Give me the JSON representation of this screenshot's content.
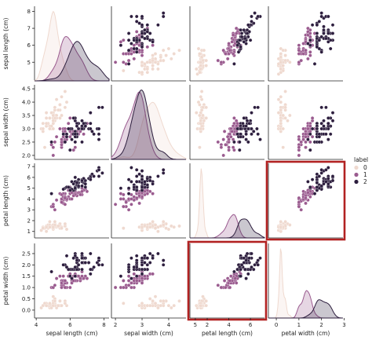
{
  "chart_data": {
    "type": "scatter",
    "variables": [
      "sepal length (cm)",
      "sepal width (cm)",
      "petal length (cm)",
      "petal width (cm)"
    ],
    "ticks": {
      "row": [
        {
          "values": [
            5,
            6,
            7,
            8
          ],
          "labels": [
            "5",
            "6",
            "7",
            "8"
          ]
        },
        {
          "values": [
            2.0,
            2.5,
            3.0,
            3.5,
            4.0,
            4.5
          ],
          "labels": [
            "2.0",
            "2.5",
            "3.0",
            "3.5",
            "4.0",
            "4.5"
          ]
        },
        {
          "values": [
            1,
            2,
            3,
            4,
            5,
            6,
            7
          ],
          "labels": [
            "1",
            "2",
            "3",
            "4",
            "5",
            "6",
            "7"
          ]
        },
        {
          "values": [
            0.0,
            0.5,
            1.0,
            1.5,
            2.0,
            2.5
          ],
          "labels": [
            "0.0",
            "0.5",
            "1.0",
            "1.5",
            "2.0",
            "2.5"
          ]
        }
      ],
      "col": [
        {
          "values": [
            4,
            6,
            8
          ],
          "labels": [
            "4",
            "6",
            "8"
          ]
        },
        {
          "values": [
            2,
            3,
            4,
            5
          ],
          "labels": [
            "2",
            "3",
            "4",
            "5"
          ]
        },
        {
          "values": [
            2,
            4,
            6
          ],
          "labels": [
            "2",
            "4",
            "6"
          ]
        },
        {
          "values": [
            0,
            1,
            2,
            3
          ],
          "labels": [
            "0",
            "1",
            "2",
            "3"
          ]
        }
      ]
    },
    "ranges": [
      [
        3.9,
        8.3
      ],
      [
        1.85,
        4.65
      ],
      [
        0.4,
        7.3
      ],
      [
        -0.35,
        2.95
      ]
    ],
    "legend": {
      "title": "label",
      "placement": "right",
      "labels": [
        "0",
        "1",
        "2"
      ]
    },
    "colors": [
      "#efd9cf",
      "#9a5b8f",
      "#2d1e3e"
    ],
    "kde_fill_opacity": 0.25,
    "highlight_color": "#b22222",
    "highlighted_panels": [
      [
        2,
        3
      ],
      [
        3,
        2
      ]
    ],
    "series": [
      {
        "name": "0",
        "points": [
          [
            5.1,
            3.5,
            1.4,
            0.2
          ],
          [
            4.9,
            3.0,
            1.4,
            0.2
          ],
          [
            4.7,
            3.2,
            1.3,
            0.2
          ],
          [
            4.6,
            3.1,
            1.5,
            0.2
          ],
          [
            5.0,
            3.6,
            1.4,
            0.2
          ],
          [
            5.4,
            3.9,
            1.7,
            0.4
          ],
          [
            4.6,
            3.4,
            1.4,
            0.3
          ],
          [
            5.0,
            3.4,
            1.5,
            0.2
          ],
          [
            4.4,
            2.9,
            1.4,
            0.2
          ],
          [
            4.9,
            3.1,
            1.5,
            0.1
          ],
          [
            5.4,
            3.7,
            1.5,
            0.2
          ],
          [
            4.8,
            3.4,
            1.6,
            0.2
          ],
          [
            4.8,
            3.0,
            1.4,
            0.1
          ],
          [
            4.3,
            3.0,
            1.1,
            0.1
          ],
          [
            5.8,
            4.0,
            1.2,
            0.2
          ],
          [
            5.7,
            4.4,
            1.5,
            0.4
          ],
          [
            5.4,
            3.9,
            1.3,
            0.4
          ],
          [
            5.1,
            3.5,
            1.4,
            0.3
          ],
          [
            5.7,
            3.8,
            1.7,
            0.3
          ],
          [
            5.1,
            3.8,
            1.5,
            0.3
          ],
          [
            5.4,
            3.4,
            1.7,
            0.2
          ],
          [
            5.1,
            3.7,
            1.5,
            0.4
          ],
          [
            4.6,
            3.6,
            1.0,
            0.2
          ],
          [
            5.1,
            3.3,
            1.7,
            0.5
          ],
          [
            4.8,
            3.4,
            1.9,
            0.2
          ],
          [
            5.0,
            3.0,
            1.6,
            0.2
          ],
          [
            5.0,
            3.4,
            1.6,
            0.4
          ],
          [
            5.2,
            3.5,
            1.5,
            0.2
          ],
          [
            5.2,
            3.4,
            1.4,
            0.2
          ],
          [
            4.7,
            3.2,
            1.6,
            0.2
          ],
          [
            4.8,
            3.1,
            1.6,
            0.2
          ],
          [
            5.4,
            3.4,
            1.5,
            0.4
          ],
          [
            5.2,
            4.1,
            1.5,
            0.1
          ],
          [
            5.5,
            4.2,
            1.4,
            0.2
          ],
          [
            4.9,
            3.1,
            1.5,
            0.2
          ],
          [
            5.0,
            3.2,
            1.2,
            0.2
          ],
          [
            5.5,
            3.5,
            1.3,
            0.2
          ],
          [
            4.9,
            3.6,
            1.4,
            0.1
          ],
          [
            4.4,
            3.0,
            1.3,
            0.2
          ],
          [
            5.1,
            3.4,
            1.5,
            0.2
          ],
          [
            5.0,
            3.5,
            1.3,
            0.3
          ],
          [
            4.5,
            2.3,
            1.3,
            0.3
          ],
          [
            4.4,
            3.2,
            1.3,
            0.2
          ],
          [
            5.0,
            3.5,
            1.6,
            0.6
          ],
          [
            5.1,
            3.8,
            1.9,
            0.4
          ],
          [
            4.8,
            3.0,
            1.4,
            0.3
          ],
          [
            5.1,
            3.8,
            1.6,
            0.2
          ],
          [
            4.6,
            3.2,
            1.4,
            0.2
          ],
          [
            5.3,
            3.7,
            1.5,
            0.2
          ],
          [
            5.0,
            3.3,
            1.4,
            0.2
          ]
        ]
      },
      {
        "name": "1",
        "points": [
          [
            7.0,
            3.2,
            4.7,
            1.4
          ],
          [
            6.4,
            3.2,
            4.5,
            1.5
          ],
          [
            6.9,
            3.1,
            4.9,
            1.5
          ],
          [
            5.5,
            2.3,
            4.0,
            1.3
          ],
          [
            6.5,
            2.8,
            4.6,
            1.5
          ],
          [
            5.7,
            2.8,
            4.5,
            1.3
          ],
          [
            6.3,
            3.3,
            4.7,
            1.6
          ],
          [
            4.9,
            2.4,
            3.3,
            1.0
          ],
          [
            6.6,
            2.9,
            4.6,
            1.3
          ],
          [
            5.2,
            2.7,
            3.9,
            1.4
          ],
          [
            5.0,
            2.0,
            3.5,
            1.0
          ],
          [
            5.9,
            3.0,
            4.2,
            1.5
          ],
          [
            6.0,
            2.2,
            4.0,
            1.0
          ],
          [
            6.1,
            2.9,
            4.7,
            1.4
          ],
          [
            5.6,
            2.9,
            3.6,
            1.3
          ],
          [
            6.7,
            3.1,
            4.4,
            1.4
          ],
          [
            5.6,
            3.0,
            4.5,
            1.5
          ],
          [
            5.8,
            2.7,
            4.1,
            1.0
          ],
          [
            6.2,
            2.2,
            4.5,
            1.5
          ],
          [
            5.6,
            2.5,
            3.9,
            1.1
          ],
          [
            5.9,
            3.2,
            4.8,
            1.8
          ],
          [
            6.1,
            2.8,
            4.0,
            1.3
          ],
          [
            6.3,
            2.5,
            4.9,
            1.5
          ],
          [
            6.1,
            2.8,
            4.7,
            1.2
          ],
          [
            6.4,
            2.9,
            4.3,
            1.3
          ],
          [
            6.6,
            3.0,
            4.4,
            1.4
          ],
          [
            6.8,
            2.8,
            4.8,
            1.4
          ],
          [
            6.7,
            3.0,
            5.0,
            1.7
          ],
          [
            6.0,
            2.9,
            4.5,
            1.5
          ],
          [
            5.7,
            2.6,
            3.5,
            1.0
          ],
          [
            5.5,
            2.4,
            3.8,
            1.1
          ],
          [
            5.5,
            2.4,
            3.7,
            1.0
          ],
          [
            5.8,
            2.7,
            3.9,
            1.2
          ],
          [
            6.0,
            2.7,
            5.1,
            1.6
          ],
          [
            5.4,
            3.0,
            4.5,
            1.5
          ],
          [
            6.0,
            3.4,
            4.5,
            1.6
          ],
          [
            6.7,
            3.1,
            4.7,
            1.5
          ],
          [
            6.3,
            2.3,
            4.4,
            1.3
          ],
          [
            5.6,
            3.0,
            4.1,
            1.3
          ],
          [
            5.5,
            2.5,
            4.0,
            1.3
          ],
          [
            5.5,
            2.6,
            4.4,
            1.2
          ],
          [
            6.1,
            3.0,
            4.6,
            1.4
          ],
          [
            5.8,
            2.6,
            4.0,
            1.2
          ],
          [
            5.0,
            2.3,
            3.3,
            1.0
          ],
          [
            5.6,
            2.7,
            4.2,
            1.3
          ],
          [
            5.7,
            3.0,
            4.2,
            1.2
          ],
          [
            5.7,
            2.9,
            4.2,
            1.3
          ],
          [
            6.2,
            2.9,
            4.3,
            1.3
          ],
          [
            5.1,
            2.5,
            3.0,
            1.1
          ],
          [
            5.7,
            2.8,
            4.1,
            1.3
          ]
        ]
      },
      {
        "name": "2",
        "points": [
          [
            6.3,
            3.3,
            6.0,
            2.5
          ],
          [
            5.8,
            2.7,
            5.1,
            1.9
          ],
          [
            7.1,
            3.0,
            5.9,
            2.1
          ],
          [
            6.3,
            2.9,
            5.6,
            1.8
          ],
          [
            6.5,
            3.0,
            5.8,
            2.2
          ],
          [
            7.6,
            3.0,
            6.6,
            2.1
          ],
          [
            4.9,
            2.5,
            4.5,
            1.7
          ],
          [
            7.3,
            2.9,
            6.3,
            1.8
          ],
          [
            6.7,
            2.5,
            5.8,
            1.8
          ],
          [
            7.2,
            3.6,
            6.1,
            2.5
          ],
          [
            6.5,
            3.2,
            5.1,
            2.0
          ],
          [
            6.4,
            2.7,
            5.3,
            1.9
          ],
          [
            6.8,
            3.0,
            5.5,
            2.1
          ],
          [
            5.7,
            2.5,
            5.0,
            2.0
          ],
          [
            5.8,
            2.8,
            5.1,
            2.4
          ],
          [
            6.4,
            3.2,
            5.3,
            2.3
          ],
          [
            6.5,
            3.0,
            5.5,
            1.8
          ],
          [
            7.7,
            3.8,
            6.7,
            2.2
          ],
          [
            7.7,
            2.6,
            6.9,
            2.3
          ],
          [
            6.0,
            2.2,
            5.0,
            1.5
          ],
          [
            6.9,
            3.2,
            5.7,
            2.3
          ],
          [
            5.6,
            2.8,
            4.9,
            2.0
          ],
          [
            7.7,
            2.8,
            6.7,
            2.0
          ],
          [
            6.3,
            2.7,
            4.9,
            1.8
          ],
          [
            6.7,
            3.3,
            5.7,
            2.1
          ],
          [
            7.2,
            3.2,
            6.0,
            1.8
          ],
          [
            6.2,
            2.8,
            4.8,
            1.8
          ],
          [
            6.1,
            3.0,
            4.9,
            1.8
          ],
          [
            6.4,
            2.8,
            5.6,
            2.1
          ],
          [
            7.2,
            3.0,
            5.8,
            1.6
          ],
          [
            7.4,
            2.8,
            6.1,
            1.9
          ],
          [
            7.9,
            3.8,
            6.4,
            2.0
          ],
          [
            6.4,
            2.8,
            5.6,
            2.2
          ],
          [
            6.3,
            2.8,
            5.1,
            1.5
          ],
          [
            6.1,
            2.6,
            5.6,
            1.4
          ],
          [
            7.7,
            3.0,
            6.1,
            2.3
          ],
          [
            6.3,
            3.4,
            5.6,
            2.4
          ],
          [
            6.4,
            3.1,
            5.5,
            1.8
          ],
          [
            6.0,
            3.0,
            4.8,
            1.8
          ],
          [
            6.9,
            3.1,
            5.4,
            2.1
          ],
          [
            6.7,
            3.1,
            5.6,
            2.4
          ],
          [
            6.9,
            3.1,
            5.1,
            2.3
          ],
          [
            5.8,
            2.7,
            5.1,
            1.9
          ],
          [
            6.8,
            3.2,
            5.9,
            2.3
          ],
          [
            6.7,
            3.3,
            5.7,
            2.5
          ],
          [
            6.7,
            3.0,
            5.2,
            2.3
          ],
          [
            6.3,
            2.5,
            5.0,
            1.9
          ],
          [
            6.5,
            3.0,
            5.2,
            2.0
          ],
          [
            6.2,
            3.4,
            5.4,
            2.3
          ],
          [
            5.9,
            3.0,
            5.1,
            1.8
          ]
        ]
      }
    ]
  }
}
